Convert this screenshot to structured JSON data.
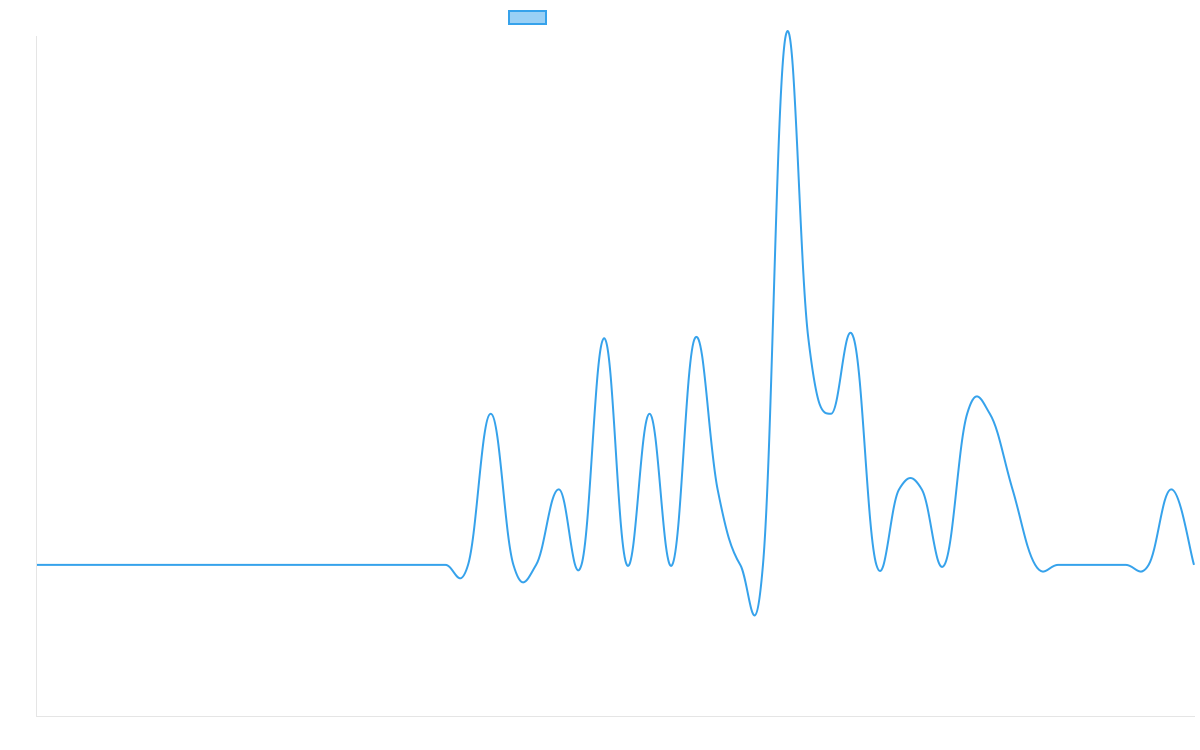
{
  "chart_data": {
    "type": "line",
    "title": "",
    "xlabel": "",
    "ylabel": "",
    "legend": "top",
    "grid": false,
    "ylim": [
      -2,
      7
    ],
    "x": [
      0,
      1,
      2,
      3,
      4,
      5,
      6,
      7,
      8,
      9,
      10,
      11,
      12,
      13,
      14,
      15,
      16,
      17,
      18,
      19,
      20,
      21,
      22,
      23,
      24,
      25,
      26,
      27,
      28,
      29,
      30,
      31,
      32,
      33,
      34,
      35,
      36,
      37,
      38,
      39,
      40,
      41,
      42,
      43,
      44,
      45,
      46,
      47,
      48,
      49,
      50,
      51
    ],
    "series": [
      {
        "name": "",
        "color": "#36a2eb",
        "fill": "#9ad0f5",
        "values": [
          0,
          0,
          0,
          0,
          0,
          0,
          0,
          0,
          0,
          0,
          0,
          0,
          0,
          0,
          0,
          0,
          0,
          0,
          0,
          0,
          2,
          0,
          0,
          1,
          0,
          3,
          0,
          2,
          0,
          3,
          1,
          0,
          0,
          7,
          3,
          2,
          3,
          0,
          1,
          1,
          0,
          2,
          2,
          1,
          0,
          0,
          0,
          0,
          0,
          0,
          1,
          0
        ]
      }
    ]
  }
}
